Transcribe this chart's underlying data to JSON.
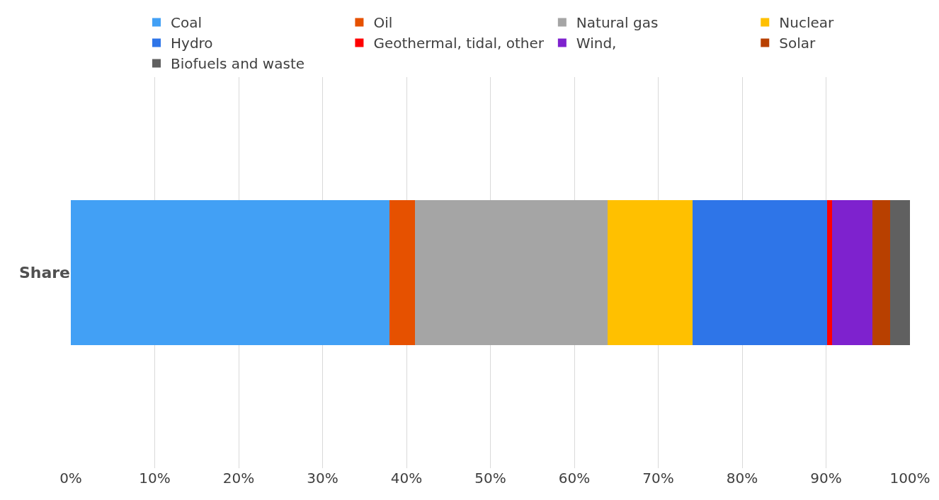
{
  "chart_data": {
    "type": "bar",
    "orientation": "horizontal",
    "stacked": true,
    "categories": [
      "Share"
    ],
    "series": [
      {
        "name": "Coal",
        "color": "#42a0f5",
        "values": [
          38.0
        ]
      },
      {
        "name": "Oil",
        "color": "#e65100",
        "values": [
          3.0
        ]
      },
      {
        "name": "Natural gas",
        "color": "#a5a5a5",
        "values": [
          23.0
        ]
      },
      {
        "name": "Nuclear",
        "color": "#ffc000",
        "values": [
          10.1
        ]
      },
      {
        "name": "Hydro",
        "color": "#2e75e8",
        "values": [
          16.0
        ]
      },
      {
        "name": "Geothermal, tidal, other",
        "color": "#ff0000",
        "values": [
          0.6
        ]
      },
      {
        "name": "Wind,",
        "color": "#7e22ce",
        "values": [
          4.8
        ]
      },
      {
        "name": "Solar",
        "color": "#b84000",
        "values": [
          2.1
        ]
      },
      {
        "name": "Biofuels and waste",
        "color": "#606060",
        "values": [
          2.4
        ]
      }
    ],
    "xlim": [
      0,
      100
    ],
    "xticks": [
      {
        "value": 0,
        "label": "0%"
      },
      {
        "value": 10,
        "label": "10%"
      },
      {
        "value": 20,
        "label": "20%"
      },
      {
        "value": 30,
        "label": "30%"
      },
      {
        "value": 40,
        "label": "40%"
      },
      {
        "value": 50,
        "label": "50%"
      },
      {
        "value": 60,
        "label": "60%"
      },
      {
        "value": 70,
        "label": "70%"
      },
      {
        "value": 80,
        "label": "80%"
      },
      {
        "value": 90,
        "label": "90%"
      },
      {
        "value": 100,
        "label": "100%"
      }
    ],
    "grid": "x",
    "legend": "top"
  }
}
